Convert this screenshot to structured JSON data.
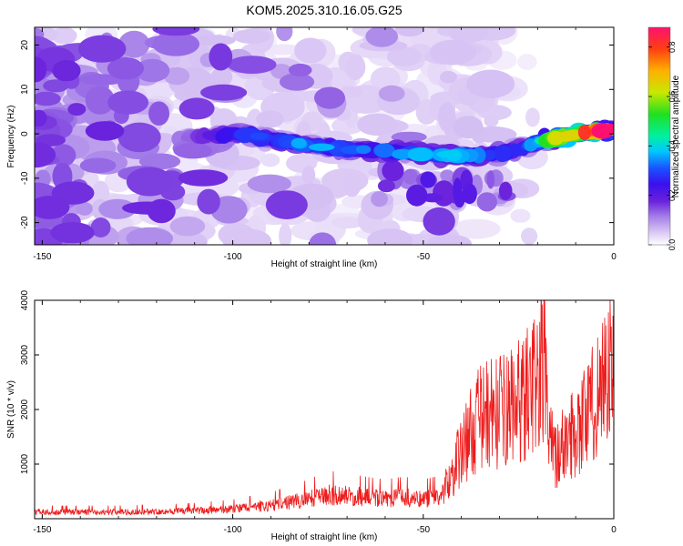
{
  "title": "KOM5.2025.310.16.05.G25",
  "chart_data": [
    {
      "type": "heatmap",
      "title": "KOM5.2025.310.16.05.G25",
      "xlabel": "Height of straight line (km)",
      "ylabel": "Frequency (Hz)",
      "xlim": [
        -152,
        0
      ],
      "ylim": [
        -25,
        24
      ],
      "xticks": [
        -150,
        -100,
        -50,
        0
      ],
      "yticks": [
        -20,
        -10,
        0,
        10,
        20
      ],
      "x_tick_labels": [
        "-150",
        "-100",
        "-50",
        "0"
      ],
      "y_tick_labels": [
        "-20",
        "-10",
        "0",
        "10",
        "20"
      ],
      "colorbar": {
        "label": "Normalized spectral amplitude",
        "range": [
          0,
          0.88
        ],
        "ticks": [
          0.0,
          0.2,
          0.4,
          0.6,
          0.8
        ],
        "tick_labels": [
          "0.0",
          "0.2",
          "0.4",
          "0.6",
          "0.8"
        ],
        "colormap": [
          "#ffffff",
          "#d8c4f4",
          "#a47ee8",
          "#6a22dc",
          "#3a10ee",
          "#1a50ff",
          "#00c8ff",
          "#00f0a0",
          "#20e020",
          "#c8e800",
          "#ffb000",
          "#ff4010",
          "#ff1070"
        ]
      },
      "ridge": {
        "x": [
          -112,
          -100,
          -90,
          -80,
          -70,
          -60,
          -50,
          -40,
          -30,
          -20,
          -15,
          -10,
          -5,
          0
        ],
        "frequency": [
          -1.0,
          0.0,
          -1.0,
          -2.5,
          -3.5,
          -4.0,
          -4.5,
          -5.0,
          -4.5,
          -2.0,
          -1.0,
          0.0,
          0.5,
          1.0
        ],
        "amplitude": [
          0.15,
          0.3,
          0.35,
          0.4,
          0.38,
          0.36,
          0.4,
          0.42,
          0.3,
          0.4,
          0.7,
          0.8,
          0.85,
          0.88
        ]
      }
    },
    {
      "type": "line",
      "xlabel": "Height of straight line (km)",
      "ylabel": "SNR (10 * v/v)",
      "xlim": [
        -152,
        0
      ],
      "ylim": [
        0,
        4000
      ],
      "xticks": [
        -150,
        -100,
        -50,
        0
      ],
      "yticks": [
        1000,
        2000,
        3000,
        4000
      ],
      "x_tick_labels": [
        "-150",
        "-100",
        "-50",
        "0"
      ],
      "y_tick_labels": [
        "1000",
        "2000",
        "3000",
        "4000"
      ],
      "series": [
        {
          "name": "SNR",
          "color": "#ee1c1c",
          "x": [
            -152,
            -140,
            -130,
            -120,
            -110,
            -100,
            -90,
            -80,
            -75,
            -70,
            -65,
            -60,
            -55,
            -50,
            -45,
            -42,
            -40,
            -37,
            -35,
            -32,
            -30,
            -27,
            -25,
            -22,
            -20,
            -19,
            -18,
            -17,
            -15,
            -12,
            -10,
            -8,
            -5,
            -3,
            -1,
            0
          ],
          "y": [
            150,
            150,
            150,
            160,
            180,
            220,
            300,
            450,
            550,
            520,
            480,
            450,
            480,
            450,
            500,
            900,
            1300,
            1700,
            1900,
            2000,
            2000,
            2100,
            2200,
            2400,
            2600,
            2800,
            2500,
            1500,
            1200,
            1500,
            1700,
            1900,
            2200,
            2700,
            2800,
            2500
          ]
        }
      ]
    }
  ]
}
